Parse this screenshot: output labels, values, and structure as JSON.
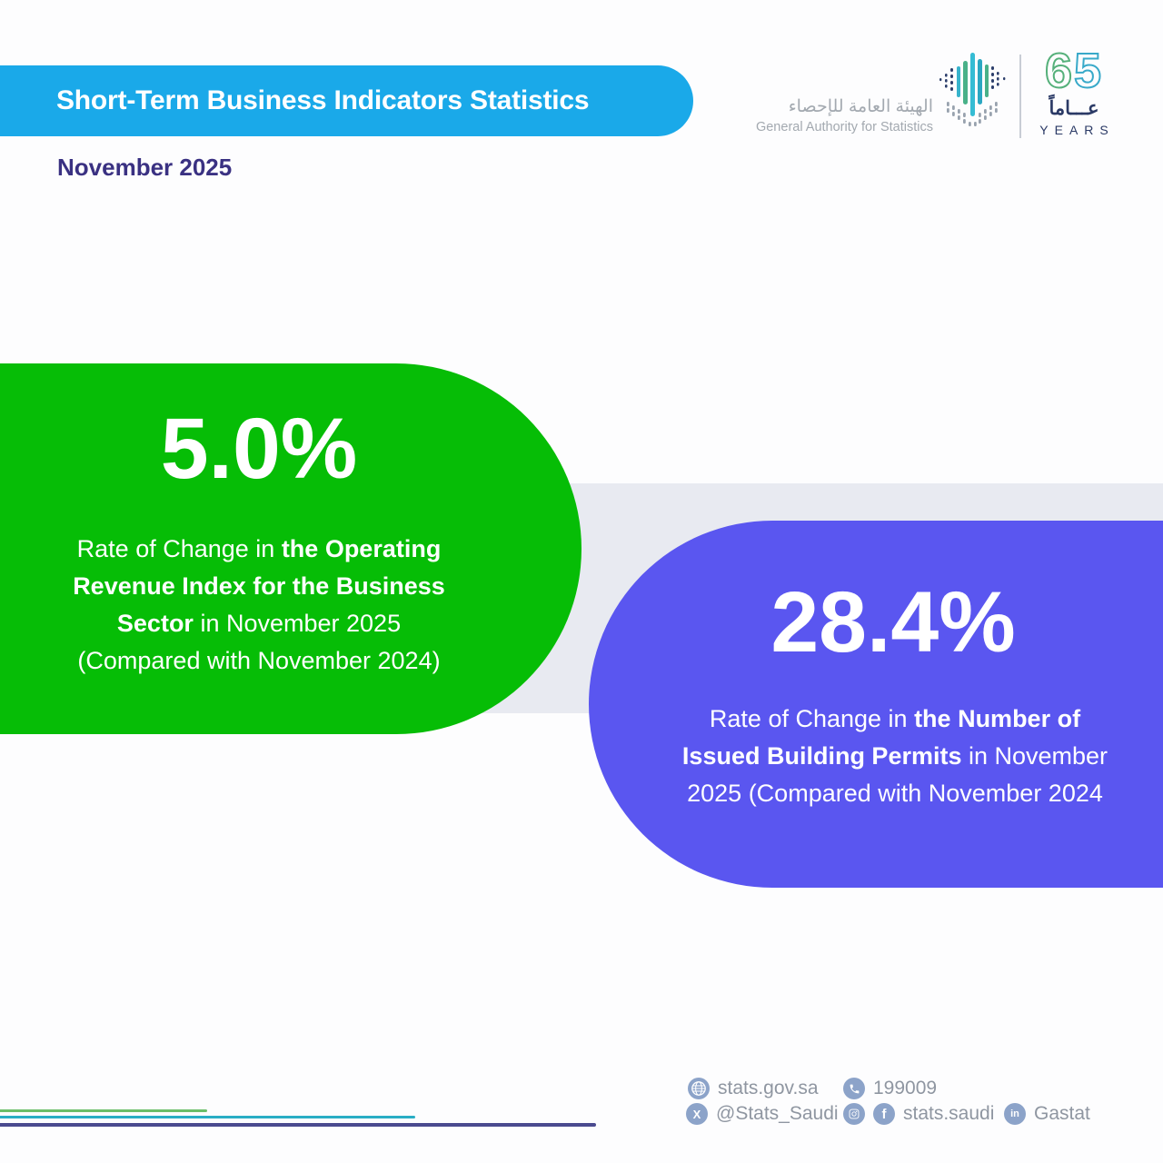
{
  "header": {
    "banner_title": "Short-Term Business Indicators Statistics",
    "period_label": "November 2025"
  },
  "logo": {
    "arabic_name": "الهيئة العامة للإحصاء",
    "english_name": "General Authority for Statistics",
    "anniversary_digit_1": "6",
    "anniversary_digit_2": "5",
    "anniversary_arabic_label": "عـــاماً",
    "anniversary_english_label": "YEARS"
  },
  "cards": [
    {
      "id": "operating-revenue-index",
      "value": "5.0%",
      "bg_color": "#06bd06",
      "lines": [
        [
          {
            "t": "Rate of Change in ",
            "b": false
          },
          {
            "t": "the Operating",
            "b": true
          }
        ],
        [
          {
            "t": "Revenue Index for the Business",
            "b": true
          }
        ],
        [
          {
            "t": "Sector",
            "b": true
          },
          {
            "t": " in November 2025",
            "b": false
          }
        ],
        [
          {
            "t": "(Compared with November 2024)",
            "b": false
          }
        ]
      ]
    },
    {
      "id": "issued-building-permits",
      "value": "28.4%",
      "bg_color": "#5a56f0",
      "lines": [
        [
          {
            "t": "Rate of Change in ",
            "b": false
          },
          {
            "t": "the Number of",
            "b": true
          }
        ],
        [
          {
            "t": "Issued Building Permits",
            "b": true
          },
          {
            "t": " in November",
            "b": false
          }
        ],
        [
          {
            "t": "2025 (Compared with November 2024",
            "b": false
          }
        ]
      ]
    }
  ],
  "footer": {
    "website": "stats.gov.sa",
    "phone": "199009",
    "x_handle": "@Stats_Saudi",
    "social_handle": "stats.saudi",
    "linkedin_name": "Gastat",
    "facebook_letter": "f",
    "linkedin_letters": "in",
    "x_letter": "X"
  },
  "colors": {
    "banner_blue": "#1aa9e9",
    "period_purple": "#3a3182",
    "card_green": "#06bd06",
    "card_purple": "#5a56f0",
    "band_gray": "#e8eaf1",
    "stripe_green": "#6cbe69",
    "stripe_teal": "#29aec5",
    "stripe_purple": "#4a4a8f",
    "footer_icon_blue": "#8ca3c9",
    "anniv_navy": "#2b3a66"
  }
}
